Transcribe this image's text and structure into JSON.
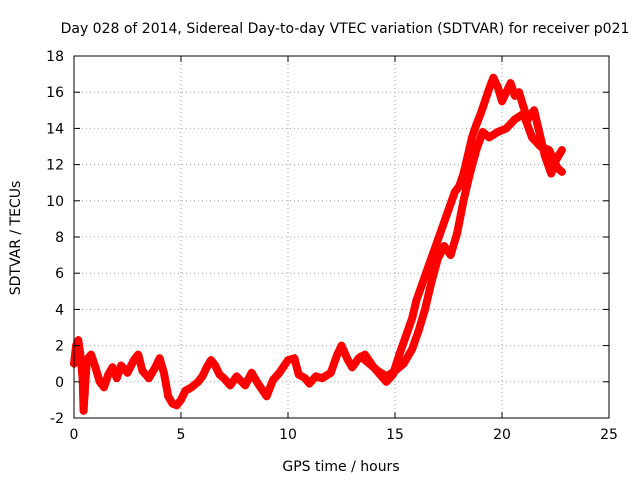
{
  "chart_data": {
    "type": "scatter",
    "title": "Day 028 of 2014, Sidereal Day-to-day VTEC variation (SDTVAR) for receiver p021",
    "xlabel": "GPS time / hours",
    "ylabel": "SDTVAR / TECUs",
    "xlim": [
      0,
      25
    ],
    "ylim": [
      -2,
      18
    ],
    "xticks": [
      0,
      5,
      10,
      15,
      20,
      25
    ],
    "yticks": [
      -2,
      0,
      2,
      4,
      6,
      8,
      10,
      12,
      14,
      16,
      18
    ],
    "grid": true,
    "marker": "+",
    "series": [
      {
        "name": "SDTVAR",
        "color": "#ff0000",
        "path": [
          [
            0.0,
            1.0
          ],
          [
            0.1,
            2.0
          ],
          [
            0.2,
            2.3
          ],
          [
            0.3,
            1.5
          ],
          [
            0.4,
            0.2
          ],
          [
            0.45,
            -1.6
          ],
          [
            0.5,
            -0.6
          ],
          [
            0.6,
            1.2
          ],
          [
            0.8,
            1.5
          ],
          [
            1.0,
            0.8
          ],
          [
            1.2,
            0.0
          ],
          [
            1.4,
            -0.3
          ],
          [
            1.6,
            0.4
          ],
          [
            1.8,
            0.8
          ],
          [
            2.0,
            0.2
          ],
          [
            2.2,
            0.9
          ],
          [
            2.5,
            0.5
          ],
          [
            2.8,
            1.2
          ],
          [
            3.0,
            1.5
          ],
          [
            3.2,
            0.6
          ],
          [
            3.5,
            0.2
          ],
          [
            3.8,
            0.8
          ],
          [
            4.0,
            1.3
          ],
          [
            4.2,
            0.5
          ],
          [
            4.4,
            -0.8
          ],
          [
            4.6,
            -1.2
          ],
          [
            4.8,
            -1.3
          ],
          [
            5.0,
            -1.0
          ],
          [
            5.2,
            -0.5
          ],
          [
            5.5,
            -0.3
          ],
          [
            5.8,
            0.0
          ],
          [
            6.0,
            0.3
          ],
          [
            6.2,
            0.8
          ],
          [
            6.4,
            1.2
          ],
          [
            6.6,
            0.9
          ],
          [
            6.8,
            0.4
          ],
          [
            7.0,
            0.2
          ],
          [
            7.3,
            -0.2
          ],
          [
            7.6,
            0.3
          ],
          [
            8.0,
            -0.2
          ],
          [
            8.3,
            0.5
          ],
          [
            8.6,
            -0.1
          ],
          [
            9.0,
            -0.8
          ],
          [
            9.3,
            0.1
          ],
          [
            9.6,
            0.5
          ],
          [
            10.0,
            1.2
          ],
          [
            10.3,
            1.3
          ],
          [
            10.5,
            0.4
          ],
          [
            10.8,
            0.2
          ],
          [
            11.0,
            -0.1
          ],
          [
            11.3,
            0.3
          ],
          [
            11.6,
            0.2
          ],
          [
            12.0,
            0.5
          ],
          [
            12.3,
            1.5
          ],
          [
            12.5,
            2.0
          ],
          [
            12.8,
            1.2
          ],
          [
            13.0,
            0.8
          ],
          [
            13.3,
            1.3
          ],
          [
            13.6,
            1.5
          ],
          [
            14.0,
            0.8
          ],
          [
            14.3,
            0.4
          ],
          [
            14.6,
            0.0
          ],
          [
            14.9,
            0.4
          ],
          [
            15.2,
            1.5
          ],
          [
            15.5,
            2.5
          ],
          [
            15.8,
            3.5
          ],
          [
            16.0,
            4.5
          ],
          [
            16.3,
            5.5
          ],
          [
            16.6,
            6.5
          ],
          [
            16.9,
            7.5
          ],
          [
            17.2,
            8.5
          ],
          [
            17.5,
            9.5
          ],
          [
            17.8,
            10.5
          ],
          [
            18.0,
            10.8
          ],
          [
            18.2,
            11.5
          ],
          [
            18.4,
            12.5
          ],
          [
            18.6,
            13.5
          ],
          [
            18.8,
            14.2
          ],
          [
            19.0,
            14.8
          ],
          [
            19.2,
            15.5
          ],
          [
            19.4,
            16.2
          ],
          [
            19.6,
            16.8
          ],
          [
            19.8,
            16.3
          ],
          [
            20.0,
            15.5
          ],
          [
            20.2,
            16.0
          ],
          [
            20.4,
            16.5
          ],
          [
            20.6,
            15.8
          ],
          [
            20.8,
            16.0
          ],
          [
            21.0,
            15.2
          ],
          [
            21.2,
            14.5
          ],
          [
            21.5,
            15.0
          ],
          [
            21.8,
            13.5
          ],
          [
            22.0,
            12.5
          ],
          [
            22.3,
            11.5
          ],
          [
            22.5,
            12.2
          ],
          [
            22.8,
            12.8
          ]
        ],
        "return_path": [
          [
            13.4,
            1.4
          ],
          [
            13.8,
            1.0
          ],
          [
            14.2,
            0.6
          ],
          [
            14.6,
            0.3
          ],
          [
            15.0,
            0.6
          ],
          [
            15.4,
            1.0
          ],
          [
            15.8,
            1.8
          ],
          [
            16.1,
            2.8
          ],
          [
            16.4,
            4.0
          ],
          [
            16.7,
            5.5
          ],
          [
            17.0,
            6.8
          ],
          [
            17.3,
            7.5
          ],
          [
            17.6,
            7.0
          ],
          [
            17.9,
            8.2
          ],
          [
            18.2,
            10.0
          ],
          [
            18.5,
            11.5
          ],
          [
            18.8,
            12.8
          ],
          [
            19.1,
            13.8
          ],
          [
            19.4,
            13.5
          ],
          [
            19.8,
            13.8
          ],
          [
            20.2,
            14.0
          ],
          [
            20.6,
            14.5
          ],
          [
            21.0,
            14.8
          ],
          [
            21.4,
            13.5
          ],
          [
            21.8,
            13.0
          ],
          [
            22.2,
            12.8
          ],
          [
            22.6,
            11.8
          ],
          [
            22.8,
            11.6
          ]
        ]
      }
    ]
  }
}
